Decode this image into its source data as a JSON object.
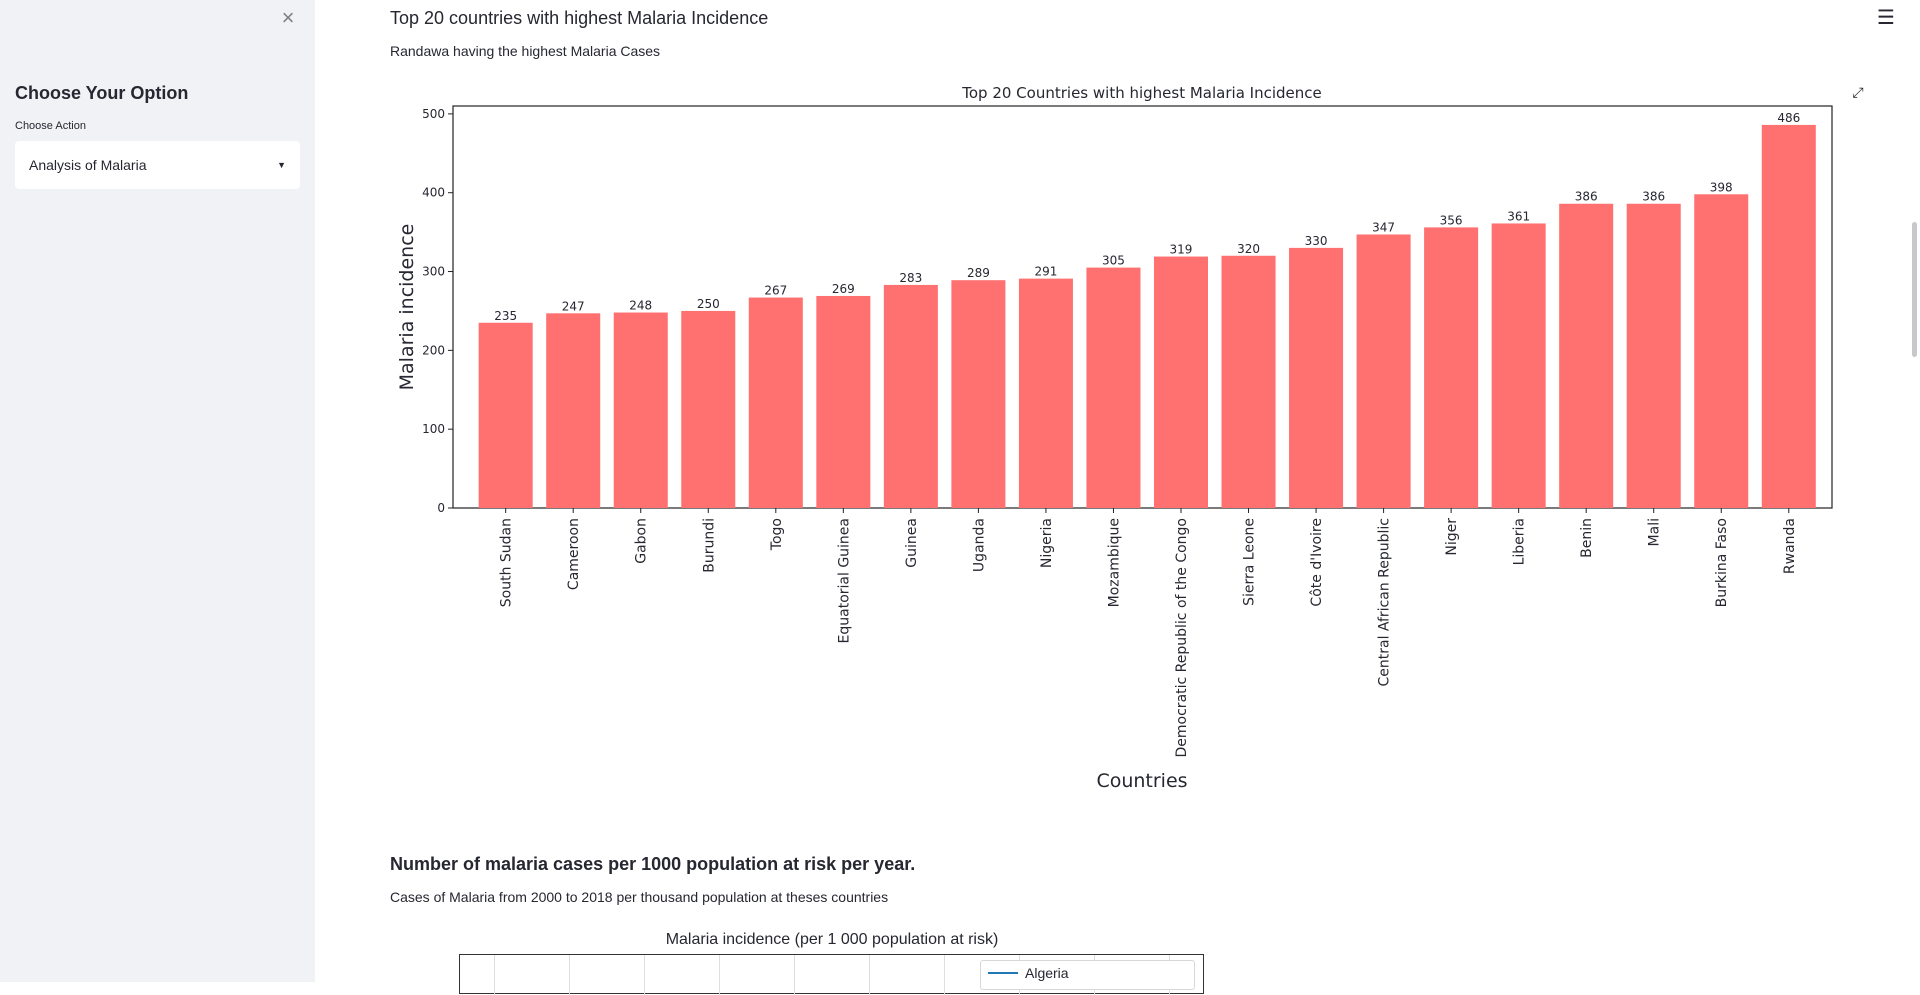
{
  "sidebar": {
    "title": "Choose Your Option",
    "select_label": "Choose Action",
    "select_value": "Analysis of Malaria",
    "close_glyph": "×"
  },
  "main": {
    "section1": {
      "title": "Top 20 countries with highest Malaria Incidence",
      "subtitle": "Randawa having the highest Malaria Cases"
    },
    "section2": {
      "title": "Number of malaria cases per 1000 population at risk per year.",
      "subtitle": "Cases of Malaria from 2000 to 2018 per thousand population at theses countries"
    }
  },
  "chart_data": [
    {
      "type": "bar",
      "title": "Top 20 Countries with highest Malaria Incidence",
      "xlabel": "Countries",
      "ylabel": "Malaria incidence",
      "categories": [
        "South Sudan",
        "Cameroon",
        "Gabon",
        "Burundi",
        "Togo",
        "Equatorial Guinea",
        "Guinea",
        "Uganda",
        "Nigeria",
        "Mozambique",
        "Democratic Republic of the Congo",
        "Sierra Leone",
        "Côte d'Ivoire",
        "Central African Republic",
        "Niger",
        "Liberia",
        "Benin",
        "Mali",
        "Burkina Faso",
        "Rwanda"
      ],
      "values": [
        235,
        247,
        248,
        250,
        267,
        269,
        283,
        289,
        291,
        305,
        319,
        320,
        330,
        347,
        356,
        361,
        386,
        386,
        398,
        486
      ],
      "yticks": [
        0,
        100,
        200,
        300,
        400,
        500
      ],
      "ylim": [
        0,
        510
      ],
      "color": "#ff7070",
      "grid": false
    },
    {
      "type": "line",
      "title": "Malaria incidence (per 1 000 population at risk)",
      "series": [
        {
          "name": "Algeria"
        }
      ],
      "legend": "top-right",
      "grid": true,
      "line_color": "#1f77b4"
    }
  ]
}
